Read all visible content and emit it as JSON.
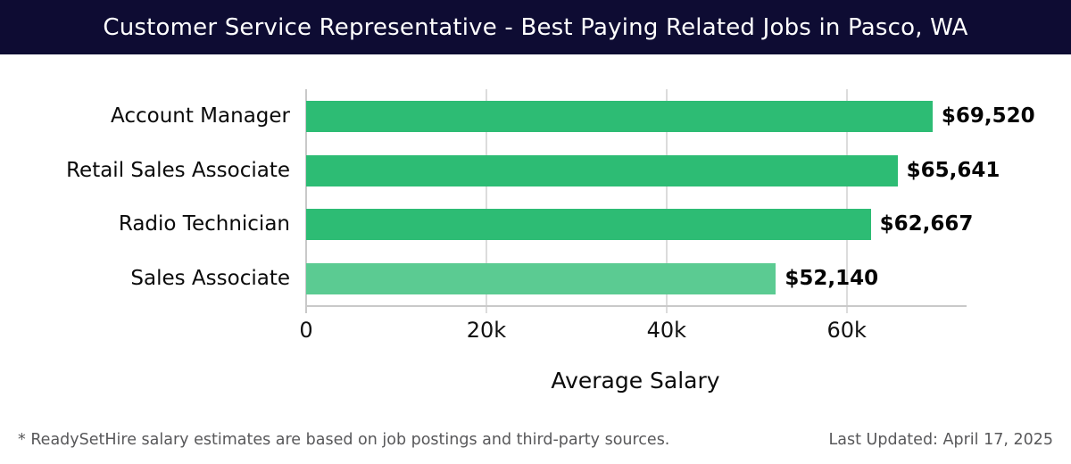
{
  "header": {
    "title": "Customer Service Representative - Best Paying Related Jobs in Pasco, WA"
  },
  "chart_data": {
    "type": "bar",
    "orientation": "horizontal",
    "categories": [
      "Account Manager",
      "Retail Sales Associate",
      "Radio Technician",
      "Sales Associate"
    ],
    "values": [
      69520,
      65641,
      62667,
      52140
    ],
    "value_labels": [
      "$69,520",
      "$65,641",
      "$62,667",
      "$52,140"
    ],
    "bar_colors": [
      "#2dbc74",
      "#2dbc74",
      "#2dbc74",
      "#5bcb92"
    ],
    "xlabel": "Average Salary",
    "ylabel": "",
    "xticks": [
      0,
      20000,
      40000,
      60000
    ],
    "xtick_labels": [
      "0",
      "20k",
      "40k",
      "60k"
    ],
    "xlim": [
      0,
      73200
    ],
    "grid": "vertical",
    "legend": "none"
  },
  "footer": {
    "disclaimer": "* ReadySetHire salary estimates are based on job postings and third-party sources.",
    "last_updated": "Last Updated: April 17, 2025"
  },
  "colors": {
    "header_bg": "#0e0c33",
    "header_text": "#ffffff",
    "bar_green": "#2dbc74",
    "bar_green_light": "#5bcb92",
    "gridline": "#dcdcdc",
    "axis_line": "#c9c9c9",
    "footer_text": "#58585a"
  }
}
